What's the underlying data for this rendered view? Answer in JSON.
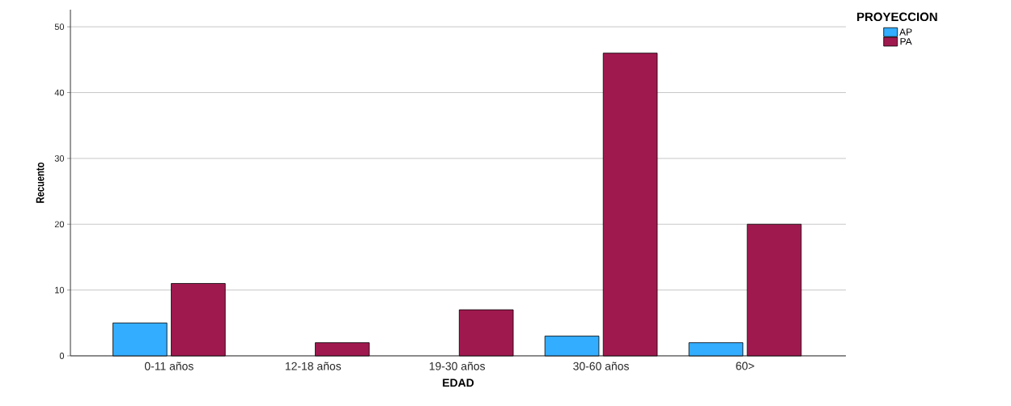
{
  "chart_data": {
    "type": "bar",
    "xlabel": "EDAD",
    "ylabel": "Recuento",
    "legend_title": "PROYECCION",
    "categories": [
      "0-11 años",
      "12-18 años",
      "19-30 años",
      "30-60 años",
      "60>"
    ],
    "series": [
      {
        "name": "AP",
        "color": "#33adff",
        "values": [
          5,
          null,
          null,
          3,
          2
        ]
      },
      {
        "name": "PA",
        "color": "#a0194e",
        "values": [
          11,
          2,
          7,
          46,
          20
        ]
      }
    ],
    "ylim": [
      0,
      52.6
    ],
    "yticks": [
      0,
      10,
      20,
      30,
      40,
      50
    ],
    "grid": "y",
    "legend": "top right"
  }
}
